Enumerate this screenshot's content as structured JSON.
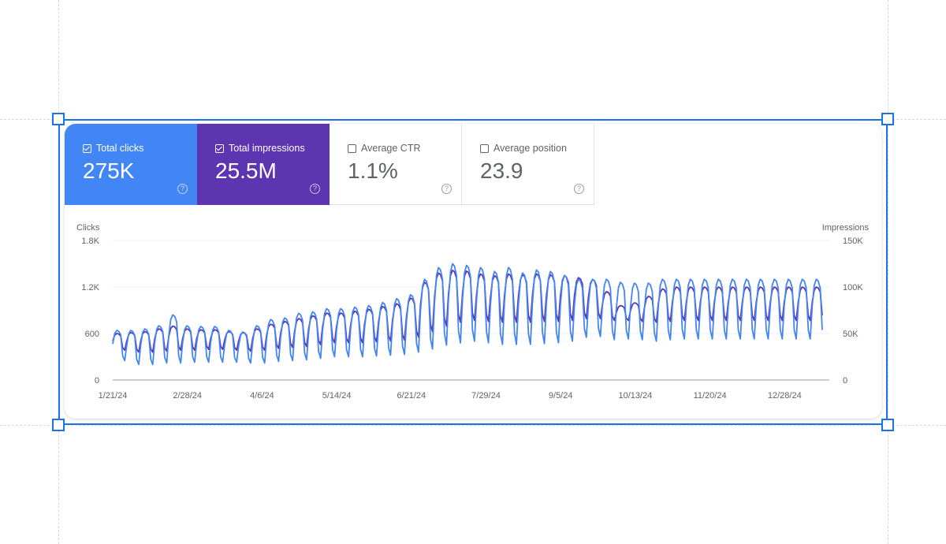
{
  "tiles": {
    "clicks": {
      "label": "Total clicks",
      "value": "275K",
      "checked": true
    },
    "impressions": {
      "label": "Total impressions",
      "value": "25.5M",
      "checked": true
    },
    "ctr": {
      "label": "Average CTR",
      "value": "1.1%",
      "checked": false
    },
    "position": {
      "label": "Average position",
      "value": "23.9",
      "checked": false
    },
    "help_glyph": "?"
  },
  "colors": {
    "clicks": "#4285f4",
    "impressions": "#5e35b1",
    "selection": "#1a73e8"
  },
  "chart_data": {
    "type": "line",
    "left_axis_title": "Clicks",
    "right_axis_title": "Impressions",
    "left_ticks": [
      "1.8K",
      "1.2K",
      "600",
      "0"
    ],
    "right_ticks": [
      "150K",
      "100K",
      "50K",
      "0"
    ],
    "x_tick_labels": [
      "1/21/24",
      "2/28/24",
      "4/6/24",
      "5/14/24",
      "6/21/24",
      "7/29/24",
      "9/5/24",
      "10/13/24",
      "11/20/24",
      "12/28/24"
    ],
    "ylim_left": [
      0,
      1800
    ],
    "ylim_right": [
      0,
      150000
    ],
    "grid": true,
    "series": [
      {
        "name": "Clicks",
        "axis": "left",
        "color": "#4285f4",
        "weekly_high": [
          640,
          640,
          660,
          700,
          840,
          700,
          690,
          690,
          640,
          620,
          700,
          780,
          800,
          860,
          880,
          920,
          920,
          940,
          960,
          1000,
          1050,
          1100,
          1300,
          1450,
          1500,
          1480,
          1450,
          1400,
          1450,
          1380,
          1420,
          1400,
          1350,
          1300,
          1300,
          1300,
          1260,
          1250,
          1250,
          1300,
          1300
        ],
        "weekly_low": [
          250,
          200,
          200,
          220,
          220,
          230,
          230,
          230,
          230,
          220,
          220,
          240,
          250,
          260,
          280,
          300,
          300,
          300,
          310,
          320,
          330,
          360,
          400,
          450,
          480,
          500,
          480,
          460,
          460,
          460,
          470,
          480,
          500,
          550,
          560,
          520,
          530,
          520,
          500,
          520,
          530
        ]
      },
      {
        "name": "Impressions",
        "axis": "right",
        "color": "#5e35b1",
        "weekly_high": [
          50000,
          51000,
          52000,
          55000,
          58000,
          55000,
          54000,
          54000,
          52000,
          51000,
          55000,
          60000,
          63000,
          66000,
          69000,
          72000,
          72000,
          74000,
          76000,
          79000,
          82000,
          88000,
          105000,
          115000,
          118000,
          117000,
          114000,
          112000,
          114000,
          113000,
          114000,
          113000,
          112000,
          110000,
          108000,
          95000,
          80000,
          83000,
          90000,
          98000,
          100000
        ],
        "weekly_low": [
          32000,
          30000,
          30000,
          31000,
          32000,
          32000,
          33000,
          33000,
          32000,
          31000,
          32000,
          34000,
          35000,
          36000,
          38000,
          40000,
          40000,
          40000,
          41000,
          42000,
          43000,
          46000,
          52000,
          58000,
          62000,
          64000,
          63000,
          62000,
          62000,
          62000,
          63000,
          63000,
          64000,
          66000,
          66000,
          64000,
          64000,
          63000,
          62000,
          63000,
          64000
        ]
      }
    ]
  }
}
